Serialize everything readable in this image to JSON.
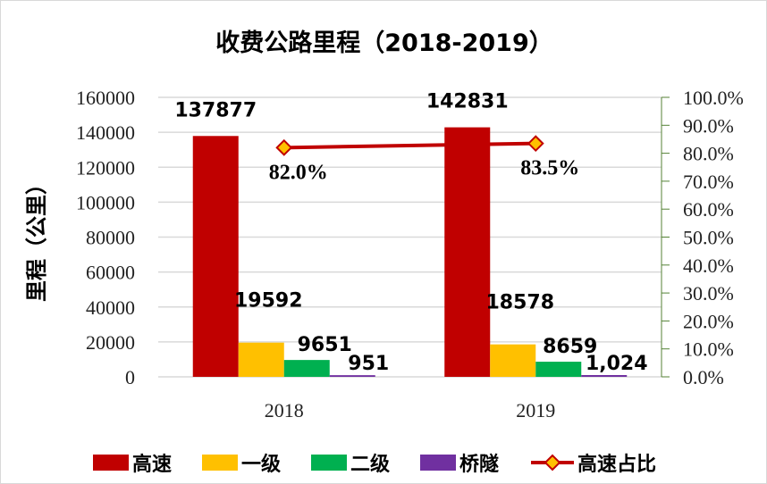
{
  "chart_data": {
    "type": "bar",
    "title": "收费公路里程（2018-2019）",
    "ylabel": "里程（公里）",
    "categories": [
      "2018",
      "2019"
    ],
    "ylim": [
      0,
      160000
    ],
    "yticks": [
      "0",
      "20000",
      "40000",
      "60000",
      "80000",
      "100000",
      "120000",
      "140000",
      "160000"
    ],
    "y2lim": [
      0,
      100
    ],
    "y2ticks": [
      "0.0%",
      "10.0%",
      "20.0%",
      "30.0%",
      "40.0%",
      "50.0%",
      "60.0%",
      "70.0%",
      "80.0%",
      "90.0%",
      "100.0%"
    ],
    "grid": true,
    "legend_position": "bottom",
    "series": [
      {
        "name": "高速",
        "color": "#c00000",
        "values": [
          137877,
          142831
        ],
        "labels": [
          "137877",
          "142831"
        ]
      },
      {
        "name": "一级",
        "color": "#ffc000",
        "values": [
          19592,
          18578
        ],
        "labels": [
          "19592",
          "18578"
        ]
      },
      {
        "name": "二级",
        "color": "#00b050",
        "values": [
          9651,
          8659
        ],
        "labels": [
          "9651",
          "8659"
        ]
      },
      {
        "name": "桥隧",
        "color": "#7030a0",
        "values": [
          951,
          1024
        ],
        "labels": [
          "951",
          "1,024"
        ]
      }
    ],
    "line_series": {
      "name": "高速占比",
      "axis": "secondary",
      "color": "#c00000",
      "marker_color": "#ffc000",
      "values": [
        82.0,
        83.5
      ],
      "labels": [
        "82.0%",
        "83.5%"
      ]
    }
  }
}
